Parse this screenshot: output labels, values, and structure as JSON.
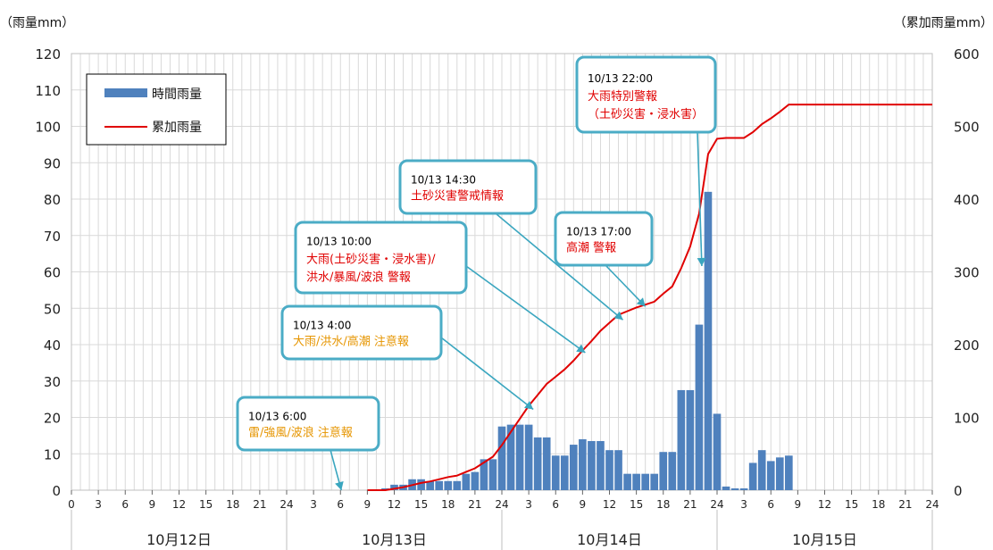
{
  "chart_data": {
    "type": "bar",
    "y_left_label": "（雨量mm）",
    "y_right_label": "（累加雨量mm）",
    "y_left_lim": [
      0,
      120
    ],
    "y_left_ticks": [
      0,
      10,
      20,
      30,
      40,
      50,
      60,
      70,
      80,
      90,
      100,
      110,
      120
    ],
    "y_right_lim": [
      0,
      600
    ],
    "y_right_ticks": [
      0,
      100,
      200,
      300,
      400,
      500,
      600
    ],
    "x_lim": [
      0,
      96
    ],
    "x_tick_labels": [
      "0",
      "3",
      "6",
      "9",
      "12",
      "15",
      "18",
      "21",
      "24",
      "3",
      "6",
      "9",
      "12",
      "15",
      "18",
      "21",
      "24",
      "3",
      "6",
      "9",
      "12",
      "15",
      "18",
      "21",
      "24",
      "3",
      "6",
      "9",
      "12",
      "15",
      "18",
      "21",
      "24"
    ],
    "day_labels": [
      "10月12日",
      "10月13日",
      "10月14日",
      "10月15日"
    ],
    "grid": true,
    "legend_position": "top-left",
    "legend": [
      {
        "label": "時間雨量",
        "color": "#4f81bd",
        "kind": "bar"
      },
      {
        "label": "累加雨量",
        "color": "#e00000",
        "kind": "line"
      }
    ],
    "series": [
      {
        "name": "時間雨量",
        "axis": "left",
        "color": "#4f81bd",
        "points": [
          {
            "x": 35,
            "y": 0.5
          },
          {
            "x": 36,
            "y": 1.5
          },
          {
            "x": 37,
            "y": 1.5
          },
          {
            "x": 38,
            "y": 3
          },
          {
            "x": 39,
            "y": 3
          },
          {
            "x": 40,
            "y": 2.5
          },
          {
            "x": 41,
            "y": 2.5
          },
          {
            "x": 42,
            "y": 2.5
          },
          {
            "x": 43,
            "y": 2.5
          },
          {
            "x": 44,
            "y": 4.5
          },
          {
            "x": 45,
            "y": 5
          },
          {
            "x": 46,
            "y": 8.5
          },
          {
            "x": 47,
            "y": 8.5
          },
          {
            "x": 48,
            "y": 17.5
          },
          {
            "x": 49,
            "y": 18
          },
          {
            "x": 50,
            "y": 18
          },
          {
            "x": 51,
            "y": 18
          },
          {
            "x": 52,
            "y": 14.5
          },
          {
            "x": 53,
            "y": 14.5
          },
          {
            "x": 54,
            "y": 9.5
          },
          {
            "x": 55,
            "y": 9.5
          },
          {
            "x": 56,
            "y": 12.5
          },
          {
            "x": 57,
            "y": 14
          },
          {
            "x": 58,
            "y": 13.5
          },
          {
            "x": 59,
            "y": 13.5
          },
          {
            "x": 60,
            "y": 11
          },
          {
            "x": 61,
            "y": 11
          },
          {
            "x": 62,
            "y": 4.5
          },
          {
            "x": 63,
            "y": 4.5
          },
          {
            "x": 64,
            "y": 4.5
          },
          {
            "x": 65,
            "y": 4.5
          },
          {
            "x": 66,
            "y": 10.5
          },
          {
            "x": 67,
            "y": 10.5
          },
          {
            "x": 68,
            "y": 27.5
          },
          {
            "x": 69,
            "y": 27.5
          },
          {
            "x": 70,
            "y": 45.5
          },
          {
            "x": 71,
            "y": 82
          },
          {
            "x": 72,
            "y": 21
          },
          {
            "x": 73,
            "y": 1
          },
          {
            "x": 74,
            "y": 0.5
          },
          {
            "x": 75,
            "y": 0.5
          },
          {
            "x": 76,
            "y": 7.5
          },
          {
            "x": 77,
            "y": 11
          },
          {
            "x": 78,
            "y": 8
          },
          {
            "x": 79,
            "y": 9
          },
          {
            "x": 80,
            "y": 9.5
          }
        ]
      },
      {
        "name": "累加雨量",
        "axis": "right",
        "color": "#e00000",
        "points": [
          {
            "x": 33,
            "y": 0
          },
          {
            "x": 35,
            "y": 0
          },
          {
            "x": 36,
            "y": 2
          },
          {
            "x": 37,
            "y": 4
          },
          {
            "x": 38,
            "y": 7
          },
          {
            "x": 39,
            "y": 10
          },
          {
            "x": 40,
            "y": 12
          },
          {
            "x": 41,
            "y": 15
          },
          {
            "x": 42,
            "y": 18
          },
          {
            "x": 43,
            "y": 20
          },
          {
            "x": 44,
            "y": 25
          },
          {
            "x": 45,
            "y": 30
          },
          {
            "x": 46,
            "y": 38
          },
          {
            "x": 47,
            "y": 46
          },
          {
            "x": 48,
            "y": 62
          },
          {
            "x": 49,
            "y": 80
          },
          {
            "x": 50,
            "y": 98
          },
          {
            "x": 51,
            "y": 116
          },
          {
            "x": 52,
            "y": 131
          },
          {
            "x": 53,
            "y": 146
          },
          {
            "x": 54,
            "y": 156
          },
          {
            "x": 55,
            "y": 166
          },
          {
            "x": 56,
            "y": 178
          },
          {
            "x": 57,
            "y": 192
          },
          {
            "x": 58,
            "y": 205
          },
          {
            "x": 59,
            "y": 219
          },
          {
            "x": 60,
            "y": 230
          },
          {
            "x": 61,
            "y": 241
          },
          {
            "x": 62,
            "y": 246
          },
          {
            "x": 63,
            "y": 251
          },
          {
            "x": 64,
            "y": 255
          },
          {
            "x": 65,
            "y": 259
          },
          {
            "x": 66,
            "y": 270
          },
          {
            "x": 67,
            "y": 280
          },
          {
            "x": 68,
            "y": 305
          },
          {
            "x": 69,
            "y": 335
          },
          {
            "x": 70,
            "y": 380
          },
          {
            "x": 71,
            "y": 462
          },
          {
            "x": 72,
            "y": 483
          },
          {
            "x": 73,
            "y": 484
          },
          {
            "x": 74,
            "y": 484
          },
          {
            "x": 75,
            "y": 484
          },
          {
            "x": 76,
            "y": 492
          },
          {
            "x": 77,
            "y": 503
          },
          {
            "x": 78,
            "y": 511
          },
          {
            "x": 79,
            "y": 520
          },
          {
            "x": 80,
            "y": 530
          },
          {
            "x": 81,
            "y": 530
          },
          {
            "x": 96,
            "y": 530
          }
        ]
      }
    ],
    "annotations": [
      {
        "lines": [
          {
            "text": "10/13  6:00",
            "color": "#000000"
          },
          {
            "text": "雷/強風/波浪  注意報",
            "color": "#e69500"
          }
        ],
        "target": {
          "x": 30.1,
          "y": 0
        }
      },
      {
        "lines": [
          {
            "text": "10/13  4:00",
            "color": "#000000"
          },
          {
            "text": "大雨/洪水/高潮  注意報",
            "color": "#e69500"
          }
        ],
        "target": {
          "x": 51.5,
          "y": 22.2
        }
      },
      {
        "lines": [
          {
            "text": "10/13  10:00",
            "color": "#000000"
          },
          {
            "text": "大雨(土砂災害・浸水害)/",
            "color": "#e00000"
          },
          {
            "text": "洪水/暴風/波浪       警報",
            "color": "#e00000"
          }
        ],
        "target": {
          "x": 57.3,
          "y": 37.8
        }
      },
      {
        "lines": [
          {
            "text": "10/13  14:30",
            "color": "#000000"
          },
          {
            "text": "土砂災害警戒情報",
            "color": "#e00000"
          }
        ],
        "target": {
          "x": 61.5,
          "y": 46.8
        }
      },
      {
        "lines": [
          {
            "text": "10/13  17:00",
            "color": "#000000"
          },
          {
            "text": "高潮     警報",
            "color": "#e00000"
          }
        ],
        "target": {
          "x": 64,
          "y": 50.5
        }
      },
      {
        "lines": [
          {
            "text": "10/13  22:00",
            "color": "#000000"
          },
          {
            "text": "大雨特別警報",
            "color": "#e00000"
          },
          {
            "text": "（土砂災害・浸水害）",
            "color": "#e00000"
          }
        ],
        "target": {
          "x": 70.3,
          "y": 61.6
        }
      }
    ]
  }
}
